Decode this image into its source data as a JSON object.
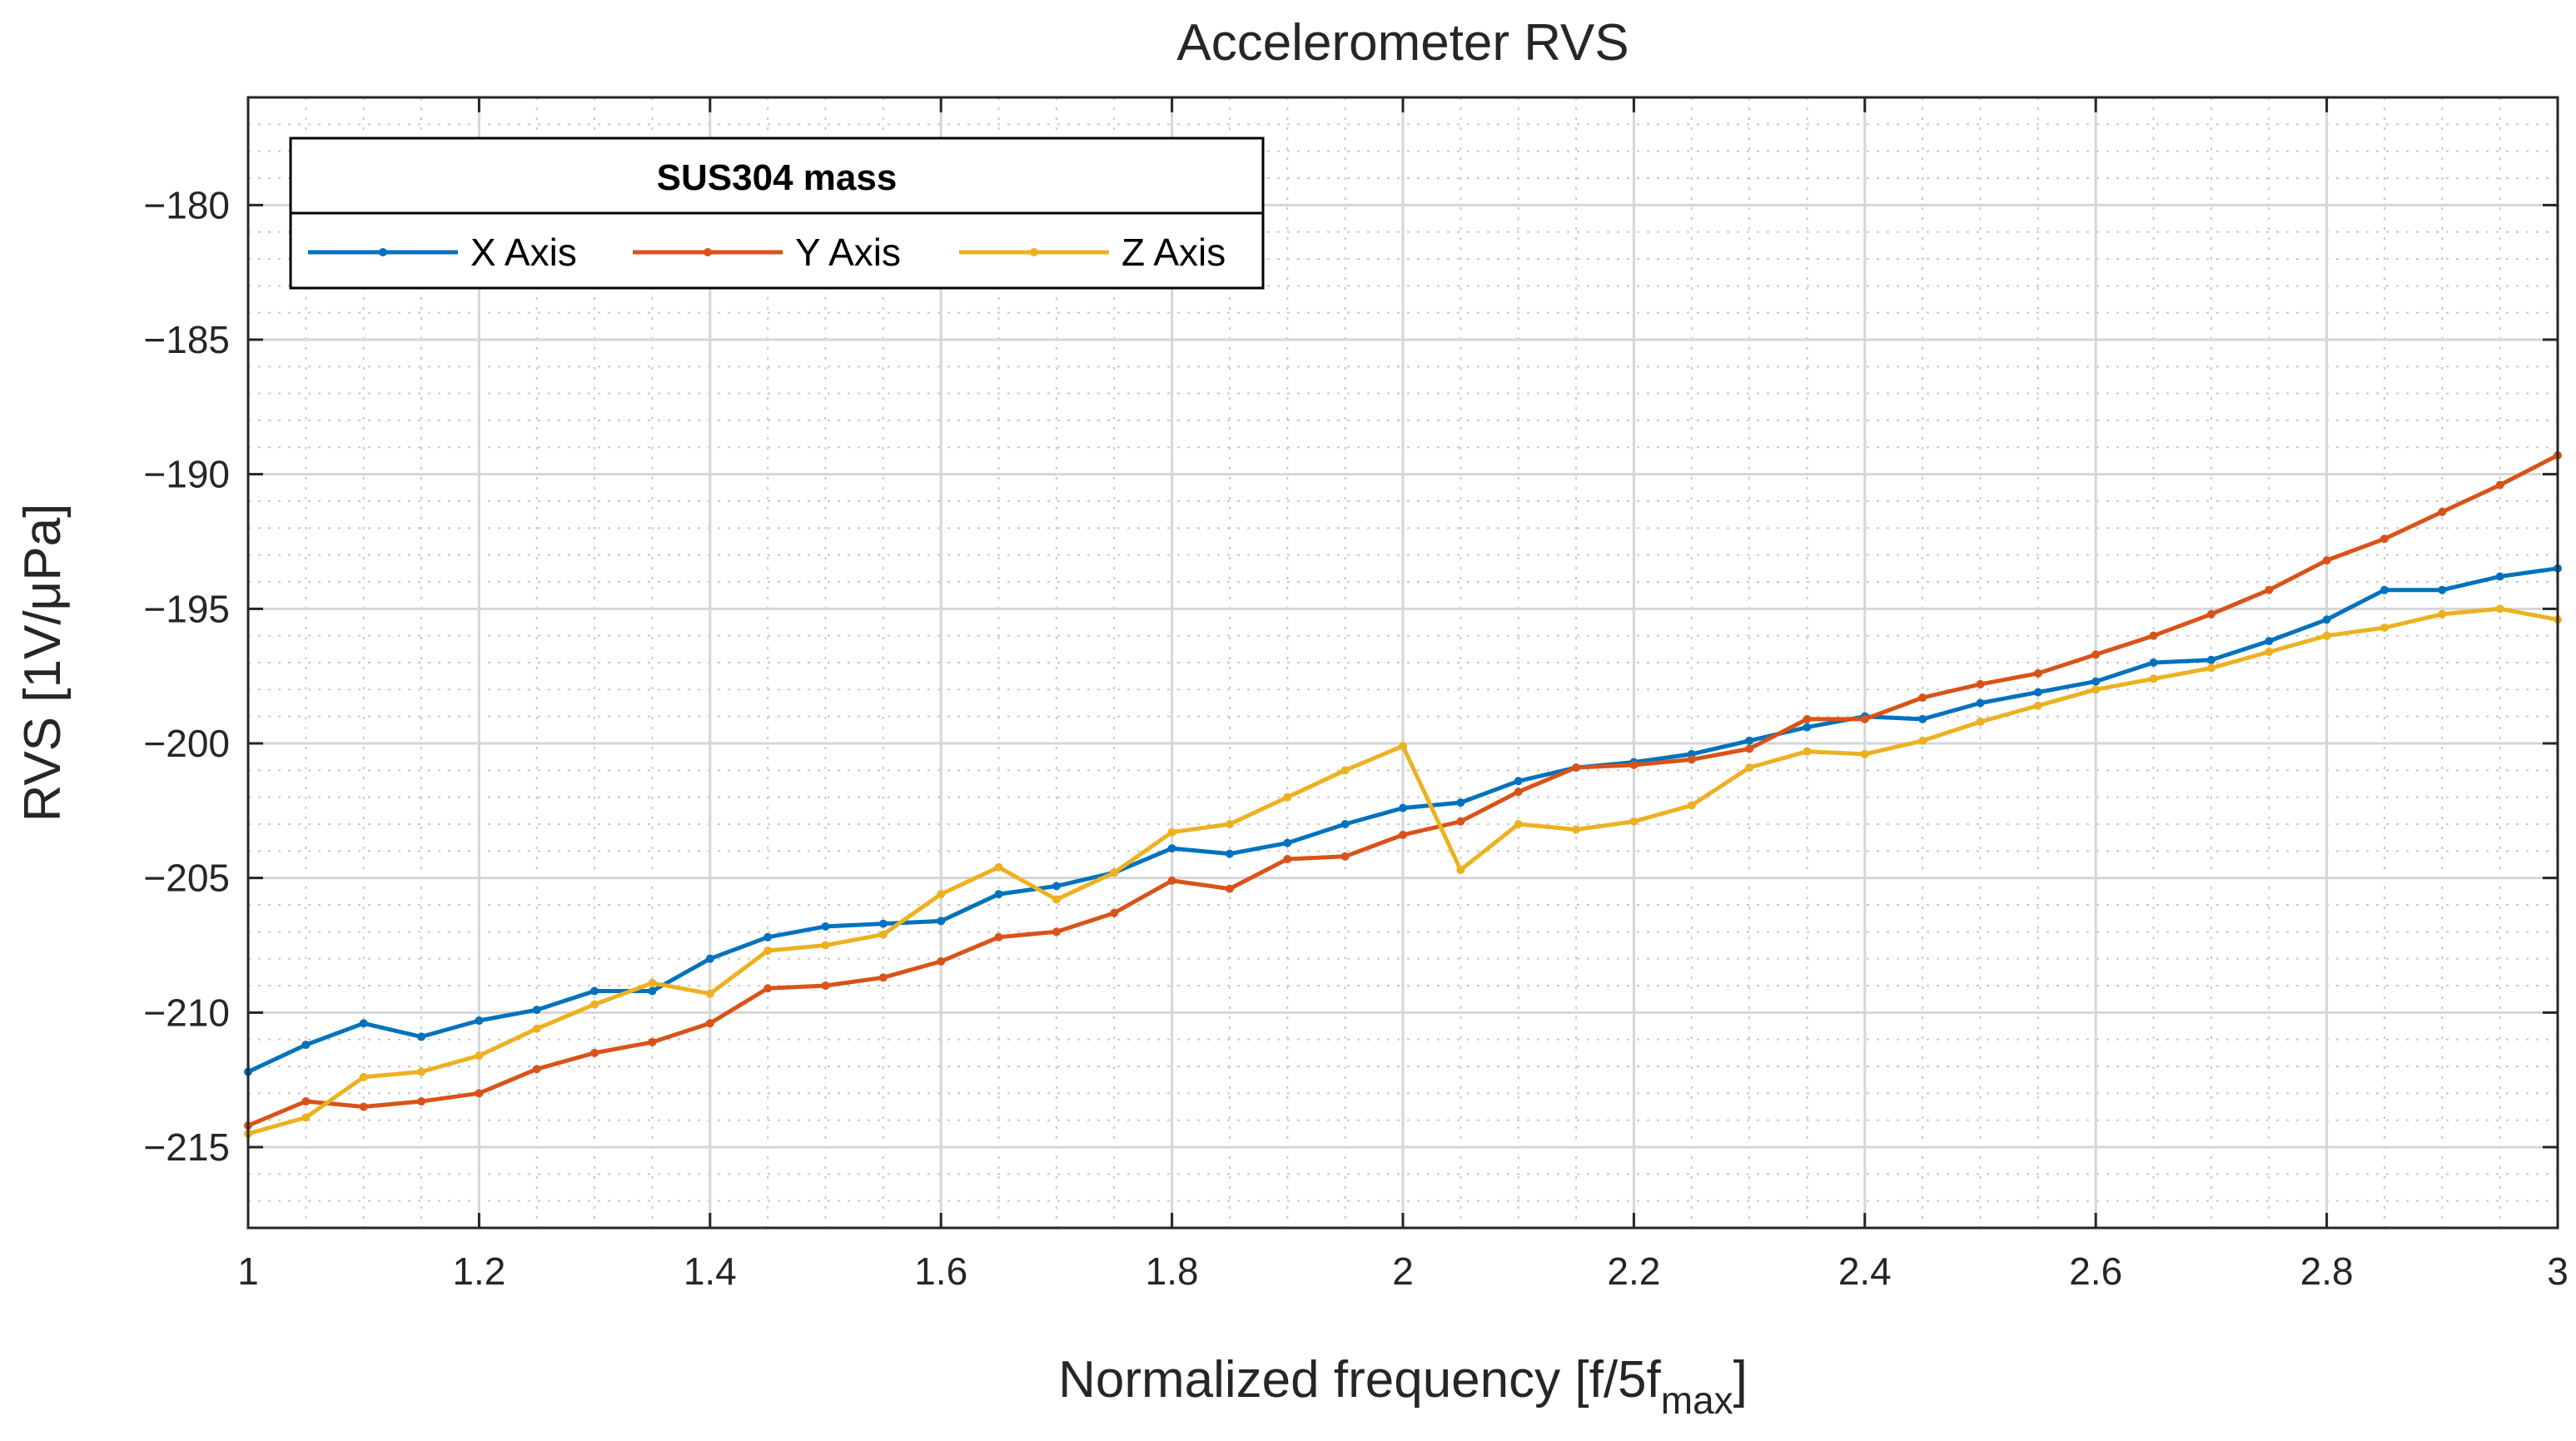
{
  "chart_data": {
    "type": "line",
    "title": "Accelerometer RVS",
    "xlabel": "Normalized frequency [f/5f",
    "xlabel_sub": "max",
    "xlabel_suffix": "]",
    "ylabel": "RVS [1V/μPa]",
    "xlim": [
      1,
      3
    ],
    "ylim": [
      -218,
      -176
    ],
    "x_ticks": [
      1,
      1.2,
      1.4,
      1.6,
      1.8,
      2,
      2.2,
      2.4,
      2.6,
      2.8,
      3
    ],
    "x_tick_labels": [
      "1",
      "1.2",
      "1.4",
      "1.6",
      "1.8",
      "2",
      "2.2",
      "2.4",
      "2.6",
      "2.8",
      "3"
    ],
    "y_ticks": [
      -180,
      -185,
      -190,
      -195,
      -200,
      -205,
      -210,
      -215
    ],
    "y_tick_labels": [
      "−180",
      "−185",
      "−190",
      "−195",
      "−200",
      "−205",
      "−210",
      "−215"
    ],
    "grid": true,
    "minor_grid": true,
    "legend_title": "SUS304 mass",
    "legend_position": "top-left",
    "x": [
      1,
      1.05,
      1.1,
      1.15,
      1.2,
      1.25,
      1.3,
      1.35,
      1.4,
      1.45,
      1.5,
      1.55,
      1.6,
      1.65,
      1.7,
      1.75,
      1.8,
      1.85,
      1.9,
      1.95,
      2,
      2.05,
      2.1,
      2.15,
      2.2,
      2.25,
      2.3,
      2.35,
      2.4,
      2.45,
      2.5,
      2.55,
      2.6,
      2.65,
      2.7,
      2.75,
      2.8,
      2.85,
      2.9,
      2.95,
      3
    ],
    "series": [
      {
        "name": "X Axis",
        "color": "#0072BD",
        "values": [
          -212.2,
          -211.2,
          -210.4,
          -210.9,
          -210.3,
          -209.9,
          -209.2,
          -209.2,
          -208.0,
          -207.2,
          -206.8,
          -206.7,
          -206.6,
          -205.6,
          -205.3,
          -204.8,
          -203.9,
          -204.1,
          -203.7,
          -203.0,
          -202.4,
          -202.2,
          -201.4,
          -200.9,
          -200.7,
          -200.4,
          -199.9,
          -199.4,
          -199.0,
          -199.1,
          -198.5,
          -198.1,
          -197.7,
          -197.0,
          -196.9,
          -196.2,
          -195.4,
          -194.3,
          -194.3,
          -193.8,
          -193.5
        ]
      },
      {
        "name": "Y Axis",
        "color": "#D95319",
        "values": [
          -214.2,
          -213.3,
          -213.5,
          -213.3,
          -213.0,
          -212.1,
          -211.5,
          -211.1,
          -210.4,
          -209.1,
          -209.0,
          -208.7,
          -208.1,
          -207.2,
          -207.0,
          -206.3,
          -205.1,
          -205.4,
          -204.3,
          -204.2,
          -203.4,
          -202.9,
          -201.8,
          -200.9,
          -200.8,
          -200.6,
          -200.2,
          -199.1,
          -199.1,
          -198.3,
          -197.8,
          -197.4,
          -196.7,
          -196.0,
          -195.2,
          -194.3,
          -193.2,
          -192.4,
          -191.4,
          -190.4,
          -189.3
        ]
      },
      {
        "name": "Z Axis",
        "color": "#EDB120",
        "values": [
          -214.5,
          -213.9,
          -212.4,
          -212.2,
          -211.6,
          -210.6,
          -209.7,
          -208.9,
          -209.3,
          -207.7,
          -207.5,
          -207.1,
          -205.6,
          -204.6,
          -205.8,
          -204.8,
          -203.3,
          -203.0,
          -202.0,
          -201.0,
          -200.1,
          -204.7,
          -203.0,
          -203.2,
          -202.9,
          -202.3,
          -200.9,
          -200.3,
          -200.4,
          -199.9,
          -199.2,
          -198.6,
          -198.0,
          -197.6,
          -197.2,
          -196.6,
          -196.0,
          -195.7,
          -195.2,
          -195.0,
          -195.4
        ]
      }
    ]
  }
}
